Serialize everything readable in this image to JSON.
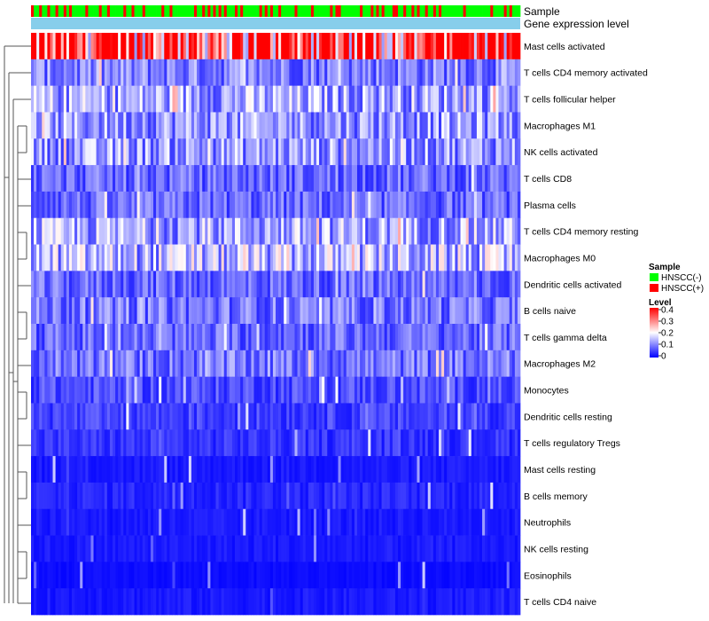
{
  "chart_data": {
    "type": "heatmap",
    "title": "",
    "annotation_labels": {
      "sample": "Sample",
      "gene_expression": "Gene expression level"
    },
    "rows": [
      "Mast cells activated",
      "T cells CD4 memory activated",
      "T cells follicular helper",
      "Macrophages M1",
      "NK cells activated",
      "T cells CD8",
      "Plasma cells",
      "T cells CD4 memory resting",
      "Macrophages M0",
      "Dendritic cells activated",
      "B cells naive",
      "T cells gamma delta",
      "Macrophages M2",
      "Monocytes",
      "Dendritic cells resting",
      "T cells regulatory  Tregs",
      "Mast cells resting",
      "B cells memory",
      "Neutrophils",
      "NK cells resting",
      "Eosinophils",
      "T cells CD4 naive"
    ],
    "row_mean_levels": [
      0.33,
      0.1,
      0.13,
      0.12,
      0.12,
      0.08,
      0.08,
      0.13,
      0.14,
      0.08,
      0.09,
      0.08,
      0.09,
      0.06,
      0.05,
      0.04,
      0.02,
      0.03,
      0.02,
      0.02,
      0.01,
      0.02
    ],
    "n_columns": 180,
    "sample_annotation_red_columns": [
      0,
      3,
      6,
      9,
      12,
      14,
      20,
      25,
      28,
      34,
      37,
      41,
      48,
      51,
      60,
      63,
      65,
      67,
      69,
      71,
      75,
      77,
      84,
      86,
      88,
      91,
      97,
      103,
      110,
      112,
      113,
      121,
      125,
      127,
      129,
      133,
      134,
      137,
      140,
      142,
      145,
      148,
      150,
      159,
      169,
      174,
      176
    ],
    "legend": {
      "sample": {
        "title": "Sample",
        "items": [
          {
            "label": "HNSCC(-)",
            "color": "#00ff00"
          },
          {
            "label": "HNSCC(+)",
            "color": "#ff0000"
          }
        ]
      },
      "level": {
        "title": "Level",
        "ticks": [
          "0.4",
          "0.3",
          "0.2",
          "0.1",
          "0"
        ],
        "range": [
          0,
          0.4
        ],
        "colors": [
          "#0000ff",
          "#ffffff",
          "#ff0000"
        ]
      }
    },
    "gene_expression_color": "#87ceeb"
  }
}
